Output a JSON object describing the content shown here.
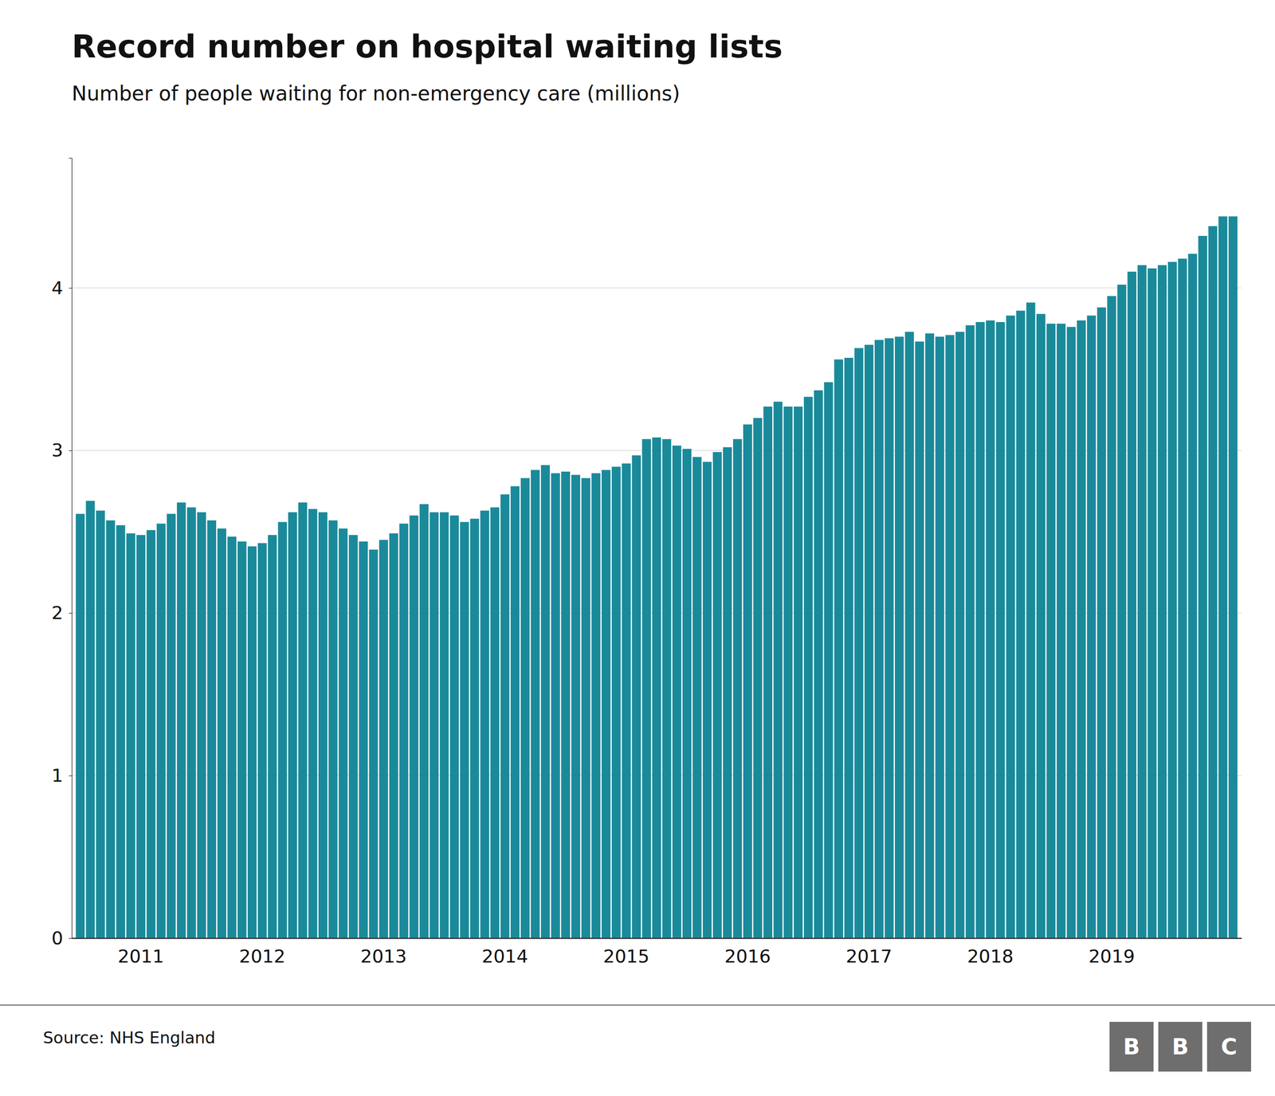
{
  "chart_data": {
    "type": "bar",
    "title": "Record number on hospital waiting lists",
    "subtitle": "Number of people waiting for non-emergency care (millions)",
    "annotations": [
      "Source: NHS England",
      "BBC"
    ],
    "categories": [
      null,
      null,
      null,
      null,
      null,
      null,
      "2011",
      null,
      null,
      null,
      null,
      null,
      null,
      null,
      null,
      null,
      null,
      null,
      "2012",
      null,
      null,
      null,
      null,
      null,
      null,
      null,
      null,
      null,
      null,
      null,
      "2013",
      null,
      null,
      null,
      null,
      null,
      null,
      null,
      null,
      null,
      null,
      null,
      "2014",
      null,
      null,
      null,
      null,
      null,
      null,
      null,
      null,
      null,
      null,
      null,
      "2015",
      null,
      null,
      null,
      null,
      null,
      null,
      null,
      null,
      null,
      null,
      null,
      "2016",
      null,
      null,
      null,
      null,
      null,
      null,
      null,
      null,
      null,
      null,
      null,
      "2017",
      null,
      null,
      null,
      null,
      null,
      null,
      null,
      null,
      null,
      null,
      null,
      "2018",
      null,
      null,
      null,
      null,
      null,
      null,
      null,
      null,
      null,
      null,
      null,
      "2019",
      null,
      null,
      null,
      null,
      null,
      null,
      null,
      null,
      null,
      null,
      null,
      null
    ],
    "values": [
      2.61,
      2.69,
      2.63,
      2.57,
      2.54,
      2.49,
      2.48,
      2.51,
      2.55,
      2.61,
      2.68,
      2.65,
      2.62,
      2.57,
      2.52,
      2.47,
      2.44,
      2.41,
      2.43,
      2.48,
      2.56,
      2.62,
      2.68,
      2.64,
      2.62,
      2.57,
      2.52,
      2.48,
      2.44,
      2.39,
      2.45,
      2.49,
      2.55,
      2.6,
      2.67,
      2.62,
      2.62,
      2.6,
      2.56,
      2.58,
      2.63,
      2.65,
      2.73,
      2.78,
      2.83,
      2.88,
      2.91,
      2.86,
      2.87,
      2.85,
      2.83,
      2.86,
      2.88,
      2.9,
      2.92,
      2.97,
      3.07,
      3.08,
      3.07,
      3.03,
      3.01,
      2.96,
      2.93,
      2.99,
      3.02,
      3.07,
      3.16,
      3.2,
      3.27,
      3.3,
      3.27,
      3.27,
      3.33,
      3.37,
      3.42,
      3.56,
      3.57,
      3.63,
      3.65,
      3.68,
      3.69,
      3.7,
      3.73,
      3.67,
      3.72,
      3.7,
      3.71,
      3.73,
      3.77,
      3.79,
      3.8,
      3.79,
      3.83,
      3.86,
      3.91,
      3.84,
      3.78,
      3.78,
      3.76,
      3.8,
      3.83,
      3.88,
      3.95,
      4.02,
      4.1,
      4.14,
      4.12,
      4.14,
      4.16,
      4.18,
      4.21,
      4.32,
      4.38,
      4.44,
      4.44
    ],
    "color": "#1a8a9a",
    "ylim": [
      0,
      4.8
    ],
    "yticks": [
      0,
      1,
      2,
      3,
      4
    ],
    "grid": true
  }
}
